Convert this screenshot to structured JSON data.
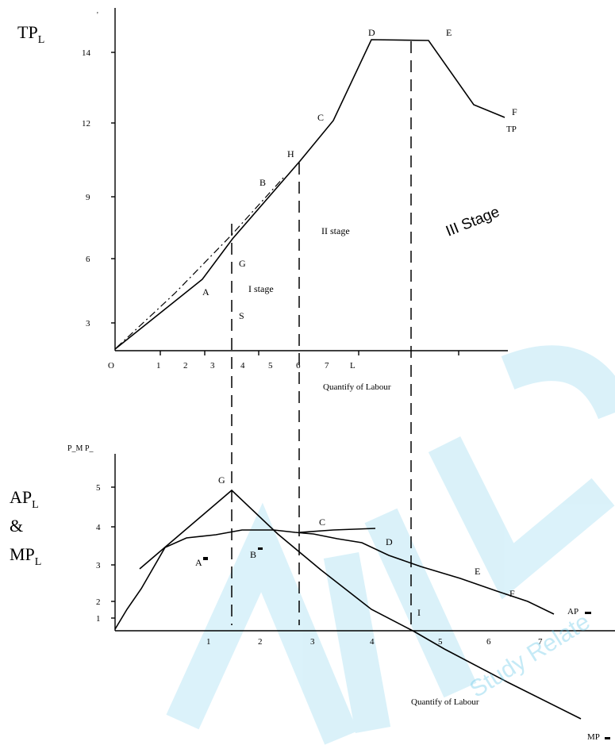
{
  "watermark": {
    "color": "#5bc4e8"
  },
  "chart_data": [
    {
      "type": "line",
      "title": "",
      "ylabel": "TPL",
      "xlabel": "Quantify of Labour",
      "y_ticks": [
        "3",
        "6",
        "9",
        "12",
        "14"
      ],
      "x_ticks": [
        "1",
        "2",
        "3",
        "4",
        "5",
        "6",
        "7",
        "L"
      ],
      "origin_label": "O",
      "series": [
        {
          "name": "TP",
          "x": [
            0,
            2.6,
            3.8,
            6.0,
            7.4,
            8.5,
            11.0,
            12.6
          ],
          "y": [
            1.2,
            5.1,
            6.9,
            10.4,
            12.1,
            14.6,
            14.5,
            12.2
          ]
        }
      ],
      "tangent": {
        "x": [
          0,
          5.8
        ],
        "y": [
          1.2,
          9.8
        ]
      },
      "point_labels": [
        {
          "text": "A",
          "x": 2.6,
          "y": 5.1
        },
        {
          "text": "B",
          "x": 5.5,
          "y": 9.5
        },
        {
          "text": "H",
          "x": 6.0,
          "y": 10.4
        },
        {
          "text": "C",
          "x": 7.4,
          "y": 12.1
        },
        {
          "text": "D",
          "x": 8.5,
          "y": 14.6
        },
        {
          "text": "E",
          "x": 11.0,
          "y": 14.5
        },
        {
          "text": "F",
          "x": 12.6,
          "y": 12.2
        },
        {
          "text": "G",
          "x": 3.8,
          "y": 6.0
        },
        {
          "text": "S",
          "x": 3.8,
          "y": 3.2
        }
      ],
      "annotations": {
        "stage1": "I stage",
        "stage2": "II stage",
        "stage3": "III Stage",
        "curve_tp": "TP"
      },
      "dividers_x": [
        3.8,
        6.0,
        9.7
      ]
    },
    {
      "type": "line",
      "title": "",
      "ylabel_lines": [
        "APL",
        "&",
        "MPL"
      ],
      "small_ylabel": "P_M P_",
      "xlabel": "Quantify of Labour",
      "y_ticks": [
        "1",
        "2",
        "3",
        "4",
        "5"
      ],
      "x_ticks": [
        "1",
        "2",
        "3",
        "4",
        "5",
        "6",
        "7"
      ],
      "series": [
        {
          "name": "AP",
          "x": [
            0.0,
            0.3,
            0.7,
            1.5,
            2.2,
            3.3,
            4.0,
            5.2,
            6.5,
            7.5,
            8.8,
            10.0,
            10.8
          ],
          "y": [
            0.8,
            1.5,
            2.3,
            3.4,
            3.7,
            3.85,
            3.8,
            3.55,
            3.1,
            2.75,
            2.25,
            1.65,
            1.65
          ]
        },
        {
          "name": "MP",
          "x": [
            0.4,
            2.8,
            5.5,
            7.2,
            9.0,
            11.0,
            12.0
          ],
          "y": [
            2.9,
            4.85,
            3.2,
            1.55,
            0.65,
            -0.45,
            -1.1
          ]
        }
      ],
      "flat_curve": {
        "x": [
          4.0,
          7.0
        ],
        "y": [
          3.8,
          3.9
        ]
      },
      "point_labels": [
        {
          "text": "G",
          "x": 2.8,
          "y": 4.85
        },
        {
          "text": "A",
          "x": 1.7,
          "y": 3.0
        },
        {
          "text": "B",
          "x": 3.0,
          "y": 3.2
        },
        {
          "text": "C",
          "x": 4.1,
          "y": 3.9
        },
        {
          "text": "D",
          "x": 5.3,
          "y": 3.35
        },
        {
          "text": "E",
          "x": 6.6,
          "y": 2.7
        },
        {
          "text": "F",
          "x": 7.5,
          "y": 2.1
        },
        {
          "text": "I",
          "x": 5.6,
          "y": 0.95
        }
      ],
      "annotations": {
        "curve_ap": "AP_",
        "curve_mp": "MP_"
      }
    }
  ]
}
